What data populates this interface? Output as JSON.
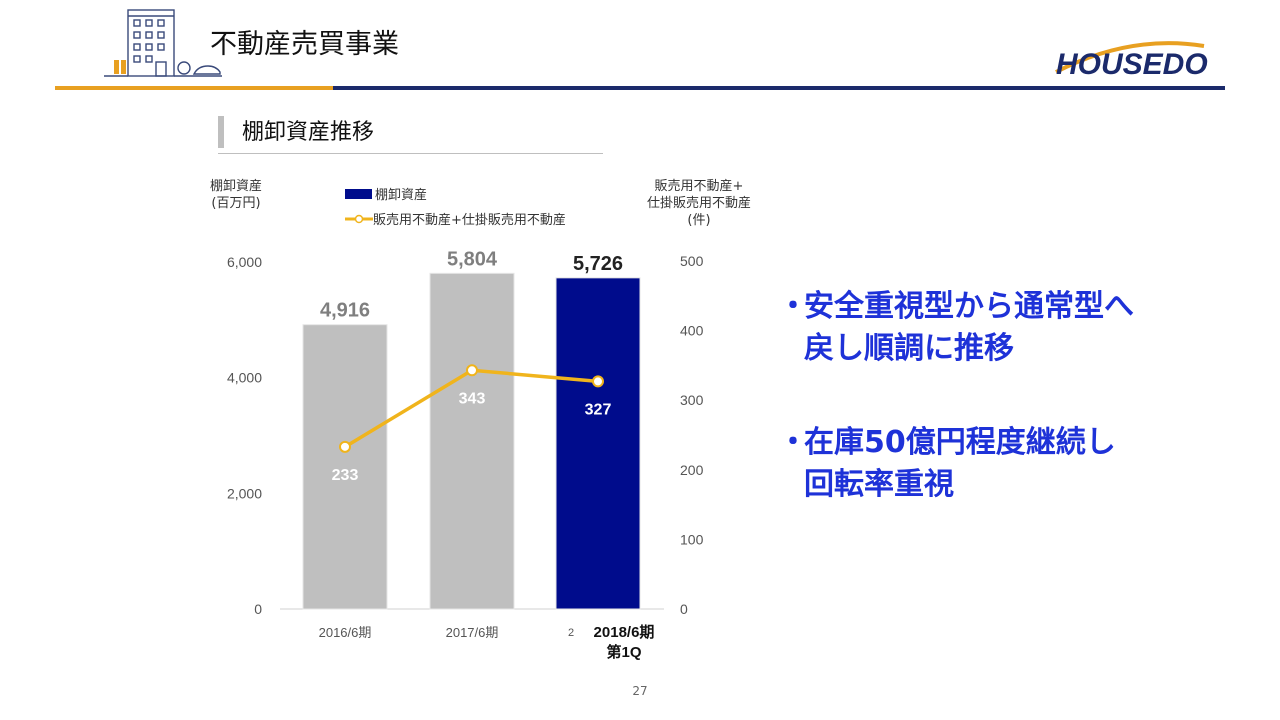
{
  "header": {
    "title": "不動産売買事業",
    "logo_text": "HOUSEDO"
  },
  "section": {
    "title": "棚卸資産推移"
  },
  "chart_data": {
    "type": "bar",
    "categories": [
      "2016/6期",
      "2017/6期",
      "2018/6期\n第1Q"
    ],
    "category_prefix_note": "2",
    "y_left": {
      "title_lines": [
        "棚卸資産",
        "(百万円)"
      ],
      "ylim": [
        0,
        6000
      ],
      "ticks": [
        "0",
        "2,000",
        "4,000",
        "6,000"
      ],
      "tick_values": [
        0,
        2000,
        4000,
        6000
      ]
    },
    "y_right": {
      "title_lines": [
        "販売用不動産+",
        "仕掛販売用不動産",
        "(件)"
      ],
      "ylim": [
        0,
        500
      ],
      "ticks": [
        "0",
        "100",
        "200",
        "300",
        "400",
        "500"
      ],
      "tick_values": [
        0,
        100,
        200,
        300,
        400,
        500
      ]
    },
    "series": [
      {
        "name": "棚卸資産",
        "kind": "bar",
        "axis": "left",
        "values": [
          4916,
          5804,
          5726
        ],
        "labels": [
          "4,916",
          "5,804",
          "5,726"
        ],
        "colors": [
          "#bfbfbf",
          "#bfbfbf",
          "#000c8c"
        ],
        "label_colors": [
          "#7f7f7f",
          "#7f7f7f",
          "#222222"
        ]
      },
      {
        "name": "販売用不動産+仕掛販売用不動産",
        "kind": "line",
        "axis": "right",
        "values": [
          233,
          343,
          327
        ],
        "labels": [
          "233",
          "343",
          "327"
        ],
        "color": "#f0b41c"
      }
    ],
    "legend_position": "top",
    "grid": false
  },
  "bullets": [
    {
      "lines": [
        "安全重視型から通常型へ",
        "戻し順調に推移"
      ]
    },
    {
      "lines": [
        "在庫50億円程度継続し",
        "回転率重視"
      ]
    }
  ],
  "bullet_mark": "・",
  "page_number": "27",
  "colors": {
    "accent_orange": "#e8a021",
    "accent_navy": "#1b2a6b",
    "bullet_blue": "#1e32d8"
  }
}
